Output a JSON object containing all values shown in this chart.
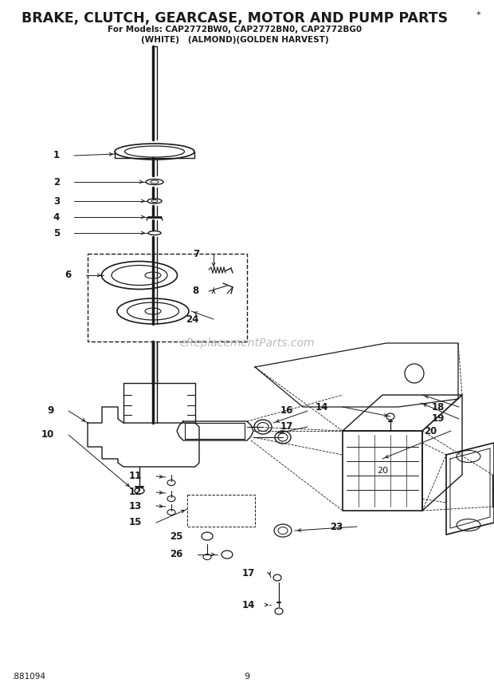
{
  "title": "BRAKE, CLUTCH, GEARCASE, MOTOR AND PUMP PARTS",
  "subtitle1": "For Models: CAP2772BW0, CAP2772BN0, CAP2772BG0",
  "subtitle2": "(WHITE)   (ALMOND)(GOLDEN HARVEST)",
  "footer_left": ".881094",
  "footer_center": "9",
  "watermark": "eReplacementParts.com",
  "bg_color": "#ffffff",
  "line_color": "#1a1a1a"
}
